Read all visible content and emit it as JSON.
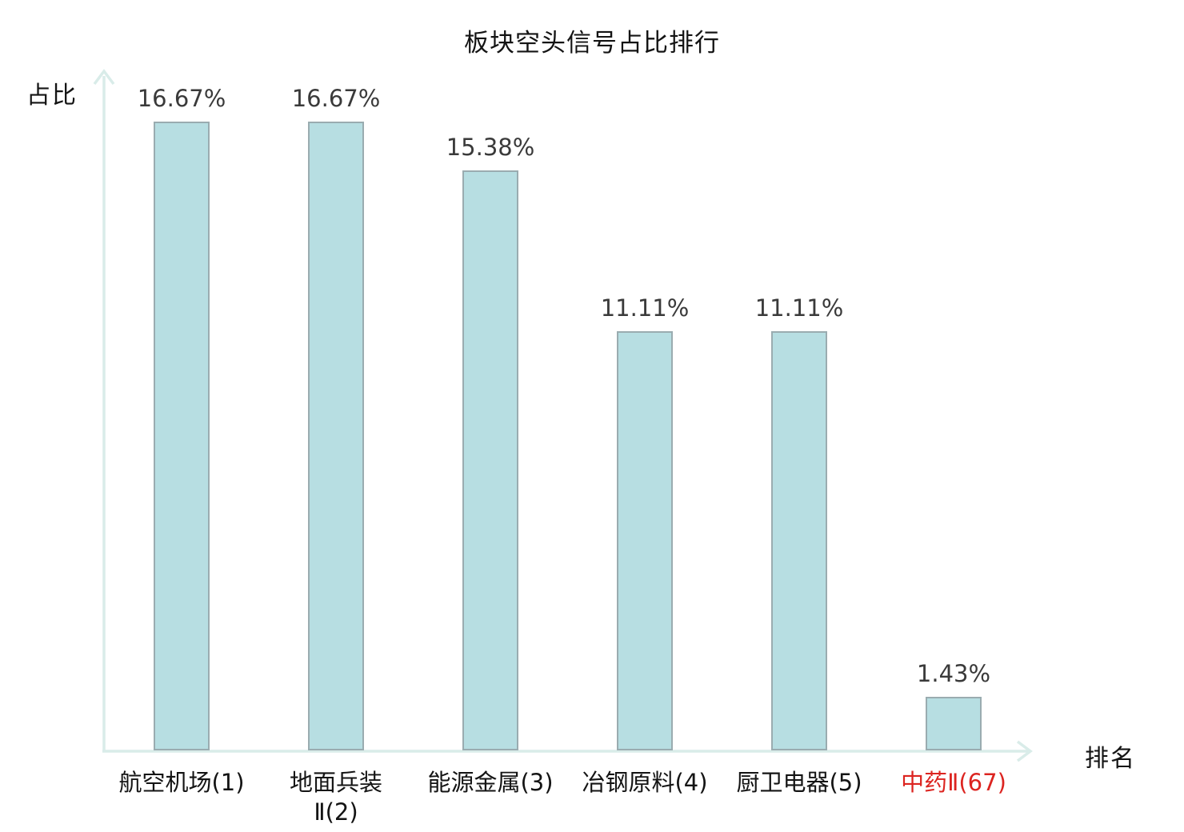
{
  "chart_data": {
    "type": "bar",
    "title": "板块空头信号占比排行",
    "ylabel": "占比",
    "xlabel": "排名",
    "categories": [
      "航空机场(1)",
      "地面兵装Ⅱ(2)",
      "能源金属(3)",
      "冶钢原料(4)",
      "厨卫电器(5)",
      "中药Ⅱ(67)"
    ],
    "category_lines": [
      [
        "航空机场(1)"
      ],
      [
        "地面兵装",
        "Ⅱ(2)"
      ],
      [
        "能源金属(3)"
      ],
      [
        "冶钢原料(4)"
      ],
      [
        "厨卫电器(5)"
      ],
      [
        "中药Ⅱ(67)"
      ]
    ],
    "values": [
      16.67,
      16.67,
      15.38,
      11.11,
      11.11,
      1.43
    ],
    "value_labels": [
      "16.67%",
      "16.67%",
      "15.38%",
      "11.11%",
      "11.11%",
      "1.43%"
    ],
    "highlight_index": 5,
    "ylim": [
      0,
      18.5
    ],
    "grid": false,
    "legend": "none",
    "colors": {
      "bar_fill": "#b7dee2",
      "bar_border": "#9aacb0",
      "axis": "#d9ece9",
      "value_text": "#3a3a3a",
      "category_text": "#141414",
      "highlight_text": "#dc2420",
      "background": "#ffffff"
    }
  }
}
